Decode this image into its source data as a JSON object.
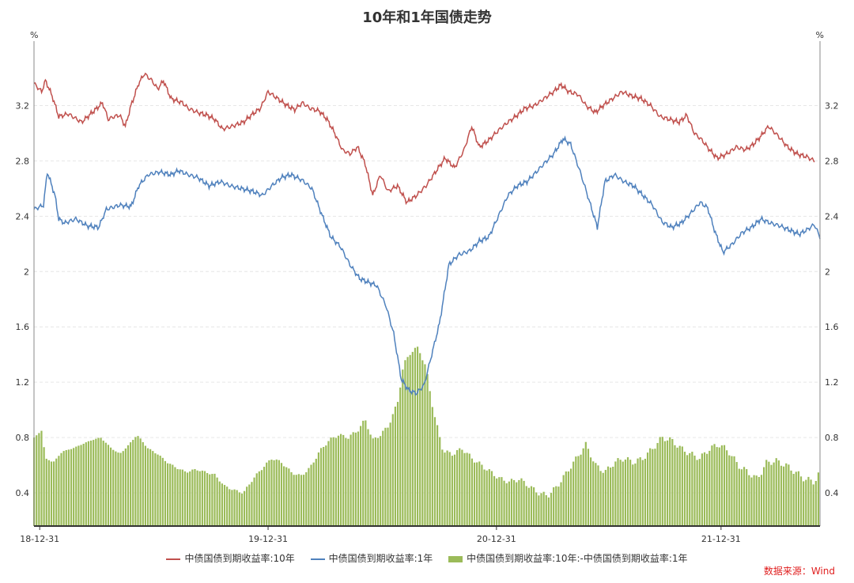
{
  "colors": {
    "ten_year": "#c0504d",
    "one_year": "#4f81bd",
    "spread": "#9bbb59",
    "grid": "#e6e6e6",
    "axis": "#888888"
  },
  "source": "数据来源：Wind",
  "chart_data": {
    "type": "line",
    "title": "10年和1年国债走势",
    "y_unit_left": "%",
    "y_unit_right": "%",
    "ylim": [
      0.16,
      3.62
    ],
    "yticks": [
      0.4,
      0.8,
      1.2,
      1.6,
      2,
      2.4,
      2.8,
      3.2
    ],
    "ytick_labels": [
      "0.4",
      "0.8",
      "1.2",
      "1.6",
      "2",
      "2.4",
      "2.8",
      "3.2"
    ],
    "xlim": [
      0,
      36.1
    ],
    "xticks": [
      0.3,
      12.3,
      24.3,
      36.1
    ],
    "xtick_labels": [
      "18-12-31",
      "19-12-31",
      "20-12-31",
      "21-12-31"
    ],
    "grid": "horizontal-dashed",
    "legend_position": "bottom",
    "x_unit": "months",
    "series": [
      {
        "name": "中债国债到期收益率:10年",
        "kind": "line",
        "points": [
          [
            0,
            3.36
          ],
          [
            0.4,
            3.3
          ],
          [
            0.6,
            3.38
          ],
          [
            0.8,
            3.32
          ],
          [
            1,
            3.25
          ],
          [
            1.3,
            3.12
          ],
          [
            1.8,
            3.14
          ],
          [
            2.5,
            3.08
          ],
          [
            3.3,
            3.18
          ],
          [
            3.6,
            3.22
          ],
          [
            3.9,
            3.1
          ],
          [
            4.2,
            3.12
          ],
          [
            4.5,
            3.13
          ],
          [
            4.8,
            3.05
          ],
          [
            5.1,
            3.2
          ],
          [
            5.5,
            3.36
          ],
          [
            5.8,
            3.43
          ],
          [
            6.2,
            3.38
          ],
          [
            6.5,
            3.32
          ],
          [
            6.8,
            3.38
          ],
          [
            7.2,
            3.25
          ],
          [
            7.8,
            3.22
          ],
          [
            8.1,
            3.18
          ],
          [
            8.6,
            3.15
          ],
          [
            9.1,
            3.13
          ],
          [
            9.5,
            3.1
          ],
          [
            9.9,
            3.03
          ],
          [
            10.4,
            3.05
          ],
          [
            11,
            3.08
          ],
          [
            11.5,
            3.14
          ],
          [
            11.9,
            3.18
          ],
          [
            12.3,
            3.3
          ],
          [
            12.8,
            3.25
          ],
          [
            13.3,
            3.2
          ],
          [
            13.7,
            3.17
          ],
          [
            14.1,
            3.22
          ],
          [
            14.5,
            3.18
          ],
          [
            15,
            3.16
          ],
          [
            15.4,
            3.1
          ],
          [
            15.8,
            3.0
          ],
          [
            16.2,
            2.88
          ],
          [
            16.6,
            2.85
          ],
          [
            17,
            2.9
          ],
          [
            17.4,
            2.78
          ],
          [
            17.8,
            2.55
          ],
          [
            18.2,
            2.7
          ],
          [
            18.6,
            2.58
          ],
          [
            19.1,
            2.62
          ],
          [
            19.6,
            2.5
          ],
          [
            20.1,
            2.55
          ],
          [
            20.6,
            2.62
          ],
          [
            21.1,
            2.72
          ],
          [
            21.6,
            2.82
          ],
          [
            22.1,
            2.75
          ],
          [
            22.6,
            2.88
          ],
          [
            23,
            3.05
          ],
          [
            23.4,
            2.9
          ],
          [
            23.9,
            2.95
          ],
          [
            24.4,
            3.02
          ],
          [
            24.9,
            3.08
          ],
          [
            25.3,
            3.12
          ],
          [
            25.8,
            3.18
          ],
          [
            26.3,
            3.2
          ],
          [
            26.8,
            3.25
          ],
          [
            27.3,
            3.3
          ],
          [
            27.7,
            3.35
          ],
          [
            28.1,
            3.3
          ],
          [
            28.6,
            3.28
          ],
          [
            29,
            3.2
          ],
          [
            29.5,
            3.15
          ],
          [
            29.9,
            3.2
          ],
          [
            30.4,
            3.25
          ],
          [
            30.9,
            3.3
          ],
          [
            31.4,
            3.27
          ],
          [
            31.9,
            3.25
          ],
          [
            32.4,
            3.2
          ],
          [
            32.9,
            3.12
          ],
          [
            33.4,
            3.1
          ],
          [
            33.9,
            3.08
          ],
          [
            34.3,
            3.13
          ],
          [
            34.7,
            3.0
          ],
          [
            35.1,
            2.95
          ],
          [
            35.5,
            2.88
          ],
          [
            35.9,
            2.82
          ],
          [
            36.4,
            2.85
          ],
          [
            36.9,
            2.9
          ],
          [
            37.4,
            2.88
          ],
          [
            37.8,
            2.92
          ],
          [
            38.2,
            2.98
          ],
          [
            38.6,
            3.05
          ],
          [
            39.1,
            2.98
          ],
          [
            39.6,
            2.9
          ],
          [
            40.1,
            2.85
          ],
          [
            40.6,
            2.83
          ],
          [
            41,
            2.8
          ]
        ]
      },
      {
        "name": "中债国债到期收益率:1年",
        "kind": "line",
        "points": [
          [
            0,
            2.45
          ],
          [
            0.5,
            2.48
          ],
          [
            0.7,
            2.72
          ],
          [
            1.1,
            2.55
          ],
          [
            1.3,
            2.38
          ],
          [
            1.6,
            2.35
          ],
          [
            2.2,
            2.38
          ],
          [
            2.8,
            2.33
          ],
          [
            3.4,
            2.32
          ],
          [
            3.8,
            2.45
          ],
          [
            4.5,
            2.48
          ],
          [
            5.1,
            2.47
          ],
          [
            5.5,
            2.62
          ],
          [
            6,
            2.7
          ],
          [
            6.6,
            2.72
          ],
          [
            7.2,
            2.7
          ],
          [
            7.6,
            2.73
          ],
          [
            8.1,
            2.7
          ],
          [
            8.6,
            2.68
          ],
          [
            9.2,
            2.62
          ],
          [
            9.8,
            2.65
          ],
          [
            10.3,
            2.62
          ],
          [
            10.9,
            2.6
          ],
          [
            11.5,
            2.58
          ],
          [
            12,
            2.55
          ],
          [
            12.5,
            2.62
          ],
          [
            13,
            2.68
          ],
          [
            13.5,
            2.7
          ],
          [
            14.1,
            2.66
          ],
          [
            14.6,
            2.6
          ],
          [
            15.1,
            2.42
          ],
          [
            15.6,
            2.25
          ],
          [
            16.1,
            2.18
          ],
          [
            16.6,
            2.05
          ],
          [
            17.1,
            1.95
          ],
          [
            17.6,
            1.92
          ],
          [
            18,
            1.9
          ],
          [
            18.5,
            1.75
          ],
          [
            18.9,
            1.55
          ],
          [
            19.3,
            1.22
          ],
          [
            19.7,
            1.14
          ],
          [
            20.1,
            1.12
          ],
          [
            20.5,
            1.18
          ],
          [
            20.9,
            1.4
          ],
          [
            21.3,
            1.62
          ],
          [
            21.8,
            2.05
          ],
          [
            22.3,
            2.12
          ],
          [
            22.9,
            2.15
          ],
          [
            23.4,
            2.22
          ],
          [
            23.9,
            2.25
          ],
          [
            24.4,
            2.4
          ],
          [
            24.9,
            2.55
          ],
          [
            25.4,
            2.62
          ],
          [
            25.9,
            2.65
          ],
          [
            26.4,
            2.72
          ],
          [
            26.8,
            2.78
          ],
          [
            27.3,
            2.85
          ],
          [
            27.8,
            2.96
          ],
          [
            28.2,
            2.92
          ],
          [
            28.7,
            2.72
          ],
          [
            29.2,
            2.5
          ],
          [
            29.6,
            2.32
          ],
          [
            30,
            2.65
          ],
          [
            30.5,
            2.7
          ],
          [
            31,
            2.65
          ],
          [
            31.5,
            2.62
          ],
          [
            32,
            2.55
          ],
          [
            32.5,
            2.48
          ],
          [
            33,
            2.36
          ],
          [
            33.5,
            2.32
          ],
          [
            34,
            2.35
          ],
          [
            34.5,
            2.42
          ],
          [
            35,
            2.5
          ],
          [
            35.4,
            2.46
          ],
          [
            35.8,
            2.28
          ],
          [
            36.2,
            2.14
          ],
          [
            36.7,
            2.2
          ],
          [
            37.2,
            2.28
          ],
          [
            37.7,
            2.32
          ],
          [
            38.2,
            2.38
          ],
          [
            38.7,
            2.35
          ],
          [
            39.2,
            2.33
          ],
          [
            39.7,
            2.3
          ],
          [
            40.2,
            2.27
          ],
          [
            40.6,
            2.3
          ],
          [
            41,
            2.34
          ],
          [
            41.3,
            2.25
          ]
        ]
      },
      {
        "name": "中债国债到期收益率:10年:-中债国债到期收益率:1年",
        "kind": "bar",
        "points": [
          [
            0,
            0.8
          ],
          [
            0.4,
            0.85
          ],
          [
            0.6,
            0.65
          ],
          [
            1,
            0.62
          ],
          [
            1.5,
            0.7
          ],
          [
            2,
            0.72
          ],
          [
            2.5,
            0.75
          ],
          [
            3,
            0.78
          ],
          [
            3.5,
            0.8
          ],
          [
            4,
            0.73
          ],
          [
            4.5,
            0.68
          ],
          [
            5,
            0.75
          ],
          [
            5.4,
            0.82
          ],
          [
            6,
            0.72
          ],
          [
            6.5,
            0.68
          ],
          [
            7,
            0.62
          ],
          [
            7.5,
            0.58
          ],
          [
            8,
            0.55
          ],
          [
            8.5,
            0.57
          ],
          [
            9,
            0.55
          ],
          [
            9.5,
            0.53
          ],
          [
            10,
            0.45
          ],
          [
            10.5,
            0.42
          ],
          [
            11,
            0.4
          ],
          [
            11.5,
            0.5
          ],
          [
            12,
            0.58
          ],
          [
            12.5,
            0.65
          ],
          [
            13,
            0.62
          ],
          [
            13.5,
            0.55
          ],
          [
            14,
            0.52
          ],
          [
            14.5,
            0.58
          ],
          [
            15,
            0.7
          ],
          [
            15.5,
            0.78
          ],
          [
            16,
            0.82
          ],
          [
            16.5,
            0.8
          ],
          [
            17,
            0.85
          ],
          [
            17.4,
            0.93
          ],
          [
            17.8,
            0.78
          ],
          [
            18.2,
            0.82
          ],
          [
            18.6,
            0.88
          ],
          [
            19.1,
            1.05
          ],
          [
            19.4,
            1.32
          ],
          [
            19.8,
            1.42
          ],
          [
            20.2,
            1.45
          ],
          [
            20.6,
            1.3
          ],
          [
            21,
            0.98
          ],
          [
            21.5,
            0.7
          ],
          [
            22,
            0.68
          ],
          [
            22.5,
            0.72
          ],
          [
            23,
            0.65
          ],
          [
            23.5,
            0.6
          ],
          [
            24,
            0.55
          ],
          [
            24.5,
            0.5
          ],
          [
            25,
            0.48
          ],
          [
            25.5,
            0.5
          ],
          [
            26,
            0.45
          ],
          [
            26.5,
            0.4
          ],
          [
            27,
            0.38
          ],
          [
            27.5,
            0.45
          ],
          [
            28,
            0.55
          ],
          [
            28.5,
            0.65
          ],
          [
            29,
            0.75
          ],
          [
            29.5,
            0.6
          ],
          [
            30,
            0.55
          ],
          [
            30.5,
            0.62
          ],
          [
            31,
            0.65
          ],
          [
            31.5,
            0.62
          ],
          [
            32,
            0.65
          ],
          [
            32.5,
            0.72
          ],
          [
            33,
            0.8
          ],
          [
            33.5,
            0.78
          ],
          [
            34,
            0.72
          ],
          [
            34.5,
            0.68
          ],
          [
            35,
            0.65
          ],
          [
            35.5,
            0.72
          ],
          [
            36,
            0.75
          ],
          [
            36.5,
            0.7
          ],
          [
            37,
            0.6
          ],
          [
            37.5,
            0.55
          ],
          [
            38,
            0.5
          ],
          [
            38.5,
            0.62
          ],
          [
            39,
            0.63
          ],
          [
            39.5,
            0.6
          ],
          [
            40,
            0.55
          ],
          [
            40.5,
            0.5
          ],
          [
            41,
            0.48
          ],
          [
            41.3,
            0.55
          ]
        ]
      }
    ]
  }
}
